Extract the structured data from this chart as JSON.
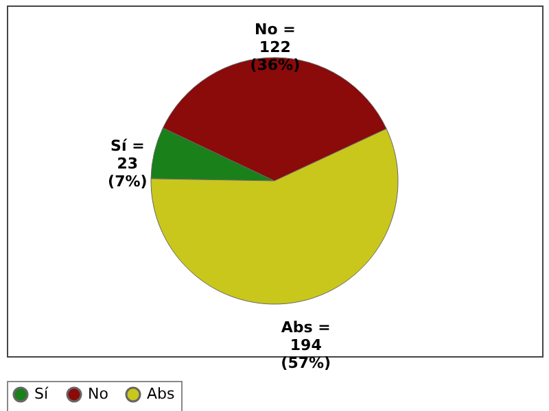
{
  "chart_data": {
    "type": "pie",
    "categories": [
      "Sí",
      "No",
      "Abs"
    ],
    "values": [
      23,
      122,
      194
    ],
    "colors": [
      "#1a801a",
      "#8b0a0a",
      "#c9c71c"
    ],
    "value_labels": [
      "Sí =\n23\n(7%)",
      "No =\n122\n(36%)",
      "Abs =\n194\n(57%)"
    ],
    "legend": "bottom"
  }
}
